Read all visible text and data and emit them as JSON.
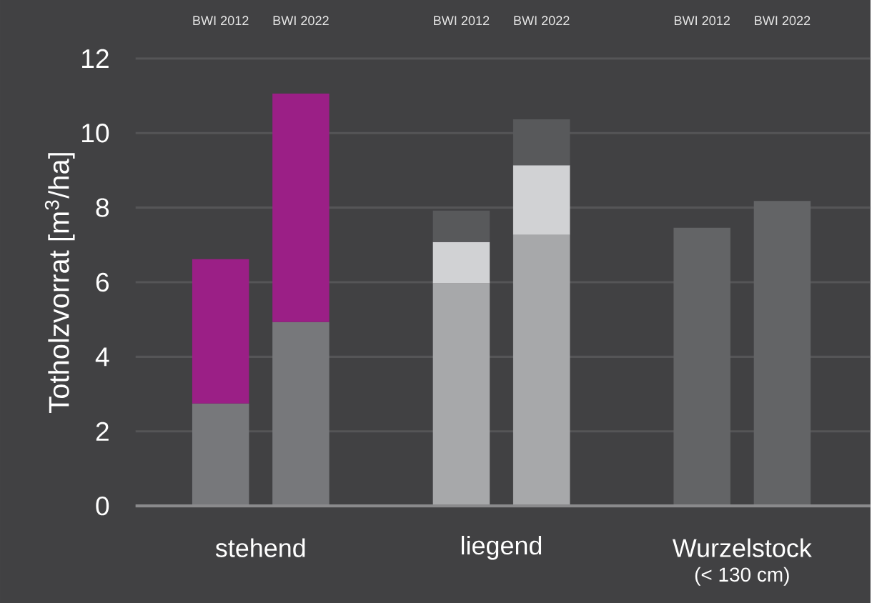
{
  "chart_data": {
    "type": "bar",
    "stacked": true,
    "categories": [
      "BWI 2012",
      "BWI 2022",
      null,
      "BWI 2012",
      "BWI 2022",
      null,
      "BWI 2012",
      "BWI 2022"
    ],
    "series": [
      {
        "colors": [
          "#77787b",
          "#77787b",
          null,
          "#a7a8aa",
          "#a7a8aa",
          null,
          "#636466",
          "#636466"
        ],
        "values": [
          2.75,
          4.93,
          null,
          5.97,
          7.27,
          null,
          7.46,
          8.18
        ]
      },
      {
        "colors": [
          "#9b1f86",
          "#9b1f86",
          null,
          "#d1d2d4",
          "#d1d2d4",
          null,
          null,
          null
        ],
        "values": [
          3.87,
          6.13,
          null,
          1.11,
          1.87,
          null,
          null,
          null
        ]
      },
      {
        "colors": [
          null,
          null,
          null,
          "#58595b",
          "#58595b",
          null,
          null,
          null
        ],
        "values": [
          null,
          null,
          null,
          0.84,
          1.23,
          null,
          null,
          null
        ]
      }
    ],
    "ylabel": "Totholzvorrat [m$^{3}$/ha]",
    "ylim": [
      0,
      12
    ],
    "yticks": [
      0,
      2,
      4,
      6,
      8,
      10,
      12
    ],
    "grid": "y",
    "annotations": [
      "stehend",
      "liegend",
      "Wurzelstock",
      "(< 130 cm)"
    ]
  }
}
